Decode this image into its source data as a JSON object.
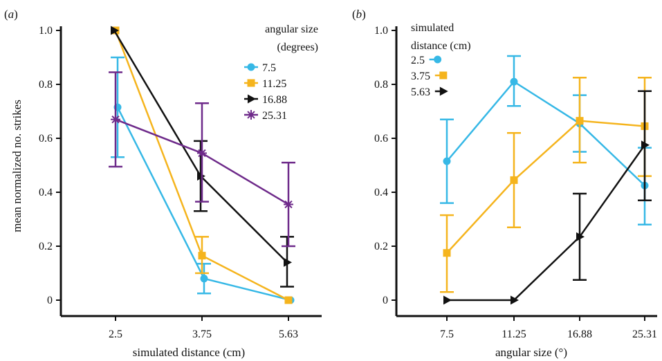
{
  "colors": {
    "cyan": "#36b8e6",
    "yellow": "#f5b41d",
    "black": "#111111",
    "purple": "#6e2a8a",
    "axis": "#111111"
  },
  "chart_data": [
    {
      "type": "line",
      "panel_label": "a",
      "xlabel": "simulated distance (cm)",
      "ylabel": "mean normalized no. strikes",
      "categories": [
        "2.5",
        "3.75",
        "5.63"
      ],
      "ylim": [
        0,
        1.0
      ],
      "yticks": [
        "0",
        "0.2",
        "0.4",
        "0.6",
        "0.8",
        "1.0"
      ],
      "grid": false,
      "legend": {
        "title_lines": [
          "angular size",
          "(degrees)"
        ],
        "placement": "top-right"
      },
      "series": [
        {
          "name": "7.5",
          "color": "#36b8e6",
          "marker": "circle",
          "values": [
            0.715,
            0.08,
            0.0
          ],
          "err_low": [
            0.53,
            0.025,
            null
          ],
          "err_high": [
            0.9,
            0.135,
            null
          ]
        },
        {
          "name": "11.25",
          "color": "#f5b41d",
          "marker": "square",
          "values": [
            1.0,
            0.165,
            0.0
          ],
          "err_low": [
            null,
            0.1,
            null
          ],
          "err_high": [
            null,
            0.235,
            null
          ]
        },
        {
          "name": "16.88",
          "color": "#111111",
          "marker": "triangle-right",
          "values": [
            1.0,
            0.46,
            0.14
          ],
          "err_low": [
            null,
            0.33,
            0.05
          ],
          "err_high": [
            null,
            0.59,
            0.235
          ]
        },
        {
          "name": "25.31",
          "color": "#6e2a8a",
          "marker": "asterisk",
          "values": [
            0.67,
            0.545,
            0.355
          ],
          "err_low": [
            0.495,
            0.365,
            0.2
          ],
          "err_high": [
            0.845,
            0.73,
            0.51
          ]
        }
      ]
    },
    {
      "type": "line",
      "panel_label": "b",
      "xlabel": "angular size (°)",
      "ylabel": "",
      "categories": [
        "7.5",
        "11.25",
        "16.88",
        "25.31"
      ],
      "ylim": [
        0,
        1.0
      ],
      "yticks": [
        "0",
        "0.2",
        "0.4",
        "0.6",
        "0.8",
        "1.0"
      ],
      "grid": false,
      "legend": {
        "title_lines": [
          "simulated",
          "distance (cm)"
        ],
        "placement": "top-left"
      },
      "series": [
        {
          "name": "2.5",
          "color": "#36b8e6",
          "marker": "circle",
          "values": [
            0.515,
            0.81,
            0.655,
            0.425
          ],
          "err_low": [
            0.36,
            0.72,
            0.55,
            0.28
          ],
          "err_high": [
            0.67,
            0.905,
            0.76,
            0.565
          ]
        },
        {
          "name": "3.75",
          "color": "#f5b41d",
          "marker": "square",
          "values": [
            0.175,
            0.445,
            0.665,
            0.645
          ],
          "err_low": [
            0.03,
            0.27,
            0.51,
            0.46
          ],
          "err_high": [
            0.315,
            0.62,
            0.825,
            0.825
          ]
        },
        {
          "name": "5.63",
          "color": "#111111",
          "marker": "triangle-right",
          "values": [
            0.0,
            0.0,
            0.235,
            0.575
          ],
          "err_low": [
            null,
            null,
            0.075,
            0.37
          ],
          "err_high": [
            null,
            null,
            0.395,
            0.775
          ]
        }
      ]
    }
  ]
}
